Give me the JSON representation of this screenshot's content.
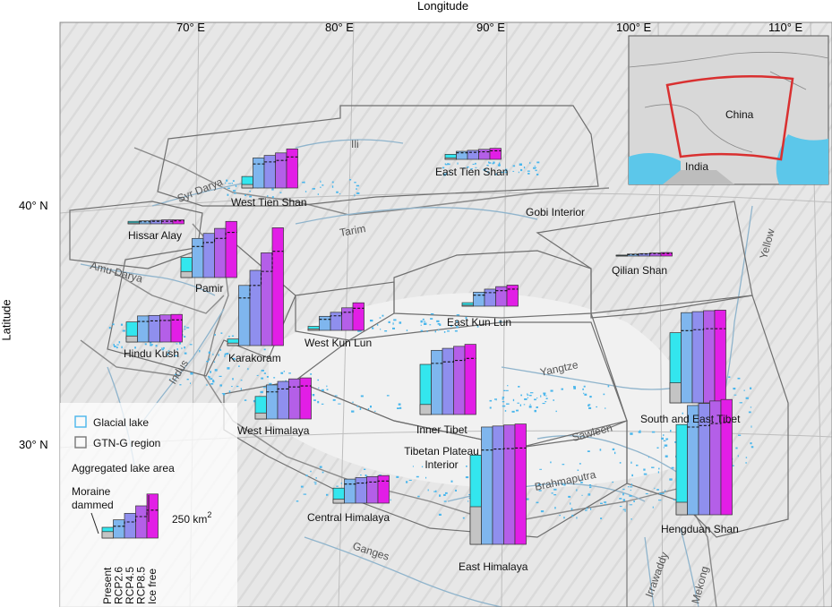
{
  "axes": {
    "x_title": "Longitude",
    "y_title": "Latitude",
    "x_ticks": [
      "70° E",
      "80° E",
      "90° E",
      "100° E",
      "110° E"
    ],
    "y_ticks": [
      "40° N",
      "30° N"
    ]
  },
  "colors": {
    "bar_gradient": [
      "#33e6ee",
      "#7fb6ee",
      "#8f8fee",
      "#b45fe8",
      "#e21ee6"
    ],
    "moraine_fill": "#c4c4c4",
    "lake": "#4ab6ec",
    "region_border": "#777777",
    "river": "#8fb4cc",
    "inset_outline": "#d93030"
  },
  "inset": {
    "country_label": "China",
    "neighbor_label": "India"
  },
  "regions": [
    {
      "name": "East Tien Shan"
    },
    {
      "name": "West Tien Shan"
    },
    {
      "name": "Hissar Alay"
    },
    {
      "name": "Pamir"
    },
    {
      "name": "Karakoram"
    },
    {
      "name": "West Kun Lun"
    },
    {
      "name": "Hindu Kush"
    },
    {
      "name": "West Himalaya"
    },
    {
      "name": "Central Himalaya"
    },
    {
      "name": "East Himalaya"
    },
    {
      "name": "East Kun Lun"
    },
    {
      "name": "Qilian Shan"
    },
    {
      "name": "Inner Tibet"
    },
    {
      "name": "South and East Tibet"
    },
    {
      "name": "Hengduan Shan"
    }
  ],
  "other_labels": {
    "gobi": "Gobi Interior",
    "tibetan_plateau": "Tibetan Plateau\nInterior"
  },
  "rivers": [
    "Ili",
    "Syr Darya",
    "Tarim",
    "Amu Darya",
    "Indus",
    "Yangtze",
    "Yellow",
    "Sawleen",
    "Brahmaputra",
    "Ganges",
    "Irrawaddy",
    "Mekong"
  ],
  "legend": {
    "glacial_lake": "Glacial lake",
    "gtng_region": "GTN-G region",
    "aggregated": "Aggregated lake area",
    "moraine": "Moraine\ndammed",
    "scale_label": "250 km",
    "scale_sup": "2",
    "categories": [
      "Present",
      "RCP2.6",
      "RCP4.5",
      "RCP8.5",
      "Ice free"
    ]
  },
  "chart_data": {
    "type": "bar",
    "categories": [
      "Present",
      "RCP2.6",
      "RCP4.5",
      "RCP8.5",
      "Ice free"
    ],
    "unit": "km²",
    "scale_bar_value": 250,
    "series": [
      {
        "name": "East Tien Shan",
        "values": [
          10,
          16,
          18,
          20,
          22
        ],
        "moraine": [
          3,
          13,
          14,
          15,
          17
        ]
      },
      {
        "name": "West Tien Shan",
        "values": [
          23,
          60,
          65,
          70,
          78
        ],
        "moraine": [
          7,
          48,
          52,
          55,
          62
        ]
      },
      {
        "name": "Hissar Alay",
        "values": [
          5,
          6,
          7,
          8,
          8
        ],
        "moraine": [
          2,
          4,
          5,
          5,
          6
        ]
      },
      {
        "name": "Pamir",
        "values": [
          40,
          78,
          88,
          98,
          112
        ],
        "moraine": [
          12,
          62,
          70,
          78,
          90
        ]
      },
      {
        "name": "Karakoram",
        "values": [
          13,
          120,
          150,
          185,
          235
        ],
        "moraine": [
          5,
          95,
          120,
          148,
          188
        ]
      },
      {
        "name": "West Kun Lun",
        "values": [
          8,
          28,
          36,
          45,
          55
        ],
        "moraine": [
          3,
          22,
          29,
          36,
          44
        ]
      },
      {
        "name": "Hindu Kush",
        "values": [
          40,
          52,
          53,
          54,
          55
        ],
        "moraine": [
          12,
          41,
          42,
          43,
          44
        ]
      },
      {
        "name": "West Himalaya",
        "values": [
          45,
          68,
          75,
          80,
          82
        ],
        "moraine": [
          12,
          54,
          60,
          64,
          66
        ]
      },
      {
        "name": "Central Himalaya",
        "values": [
          30,
          48,
          51,
          53,
          55
        ],
        "moraine": [
          8,
          38,
          40,
          42,
          44
        ]
      },
      {
        "name": "East Himalaya",
        "values": [
          178,
          234,
          236,
          238,
          240
        ],
        "moraine": [
          75,
          188,
          190,
          191,
          192
        ]
      },
      {
        "name": "East Kun Lun",
        "values": [
          7,
          28,
          34,
          39,
          42
        ],
        "moraine": [
          2,
          22,
          27,
          31,
          34
        ]
      },
      {
        "name": "Qilian Shan",
        "values": [
          2,
          4,
          5,
          6,
          7
        ],
        "moraine": [
          1,
          3,
          4,
          5,
          5
        ]
      },
      {
        "name": "Inner Tibet",
        "values": [
          100,
          128,
          132,
          136,
          140
        ],
        "moraine": [
          20,
          102,
          105,
          108,
          112
        ]
      },
      {
        "name": "South and East Tibet",
        "values": [
          140,
          180,
          182,
          184,
          185
        ],
        "moraine": [
          40,
          144,
          146,
          148,
          148
        ]
      },
      {
        "name": "Hengduan Shan",
        "values": [
          180,
          218,
          222,
          227,
          230
        ],
        "moraine": [
          25,
          175,
          178,
          182,
          184
        ]
      }
    ]
  }
}
